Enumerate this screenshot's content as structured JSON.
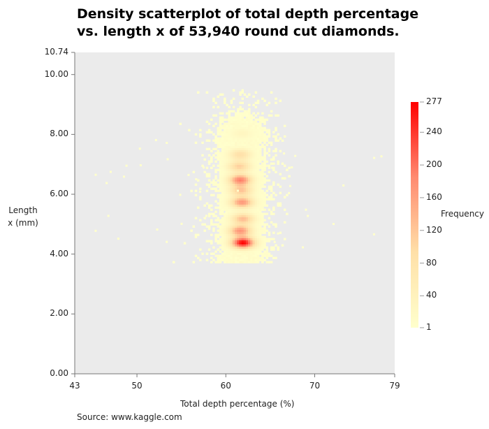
{
  "chart_data": {
    "type": "heatmap",
    "title": "Density scatterplot of total depth percentage vs. length x of 53,940 round cut diamonds.",
    "xlabel": "Total depth percentage (%)",
    "ylabel": "Length x (mm)",
    "xlim": [
      43,
      79
    ],
    "ylim": [
      0,
      10.74
    ],
    "xticks": [
      "43",
      "50",
      "60",
      "70",
      "79"
    ],
    "yticks": [
      "0.00",
      "2.00",
      "4.00",
      "6.00",
      "8.00",
      "10.00",
      "10.74"
    ],
    "grid": false,
    "colorbar": {
      "label": "Frequency",
      "min": 1,
      "max": 277,
      "ticks": [
        "1",
        "40",
        "80",
        "120",
        "160",
        "200",
        "240",
        "277"
      ],
      "colors": [
        "#ffffcc",
        "#ffe0a8",
        "#ff8a70",
        "#ff0000"
      ]
    },
    "density_peaks": [
      {
        "depth": 61.8,
        "x": 4.35,
        "frequency": 277
      },
      {
        "depth": 61.5,
        "x": 4.75,
        "frequency": 170
      },
      {
        "depth": 61.8,
        "x": 5.15,
        "frequency": 130
      },
      {
        "depth": 61.7,
        "x": 5.7,
        "frequency": 170
      },
      {
        "depth": 61.6,
        "x": 6.1,
        "frequency": 120
      },
      {
        "depth": 61.5,
        "x": 6.45,
        "frequency": 190
      },
      {
        "depth": 61.4,
        "x": 6.9,
        "frequency": 110
      },
      {
        "depth": 61.5,
        "x": 7.3,
        "frequency": 90
      },
      {
        "depth": 61.7,
        "x": 8.0,
        "frequency": 30
      }
    ],
    "background_spread": {
      "depth_range": [
        55,
        67
      ],
      "x_range": [
        3.8,
        9.3
      ]
    },
    "source": "Source: www.kaggle.com"
  }
}
